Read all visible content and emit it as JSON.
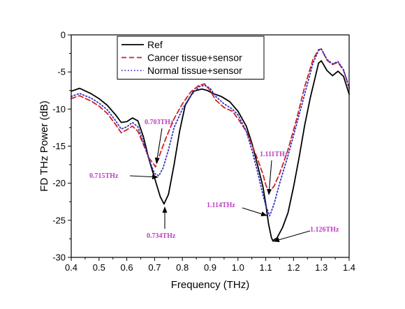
{
  "chart_data": {
    "type": "line",
    "xlabel": "Frequency (THz)",
    "ylabel": "FD THz Power (dB)",
    "xlim": [
      0.4,
      1.4
    ],
    "ylim": [
      -30,
      0
    ],
    "xticks": [
      0.4,
      0.5,
      0.6,
      0.7,
      0.8,
      0.9,
      1.0,
      1.1,
      1.2,
      1.3,
      1.4
    ],
    "xtick_labels": [
      "0.4",
      "0.5",
      "0.6",
      "0.7",
      "0.8",
      "0.9",
      "1.0",
      "1.1",
      "1.2",
      "1.3",
      "1.4"
    ],
    "yticks": [
      0,
      -5,
      -10,
      -15,
      -20,
      -25,
      -30
    ],
    "ytick_labels": [
      "0",
      "-5",
      "-10",
      "-15",
      "-20",
      "-25",
      "-30"
    ],
    "grid": false,
    "legend_position": "top-center",
    "series": [
      {
        "name": "Ref",
        "color": "#000000",
        "style": "solid",
        "x": [
          0.4,
          0.43,
          0.47,
          0.5,
          0.53,
          0.56,
          0.58,
          0.6,
          0.62,
          0.64,
          0.66,
          0.68,
          0.7,
          0.72,
          0.734,
          0.75,
          0.77,
          0.79,
          0.81,
          0.84,
          0.87,
          0.89,
          0.91,
          0.94,
          0.97,
          1.0,
          1.03,
          1.05,
          1.07,
          1.09,
          1.1,
          1.11,
          1.12,
          1.126,
          1.13,
          1.14,
          1.16,
          1.18,
          1.2,
          1.22,
          1.24,
          1.26,
          1.28,
          1.29,
          1.3,
          1.32,
          1.34,
          1.36,
          1.38,
          1.4
        ],
        "y": [
          -7.6,
          -7.2,
          -7.9,
          -8.6,
          -9.5,
          -10.8,
          -11.8,
          -11.7,
          -11.2,
          -11.6,
          -13.8,
          -16.8,
          -19.3,
          -21.8,
          -22.8,
          -21.5,
          -17.5,
          -13.0,
          -9.5,
          -7.6,
          -7.3,
          -7.5,
          -7.9,
          -8.3,
          -9.0,
          -10.3,
          -12.3,
          -14.6,
          -17.5,
          -20.5,
          -22.8,
          -25.5,
          -27.3,
          -27.8,
          -27.6,
          -27.4,
          -26.0,
          -24.0,
          -20.5,
          -16.5,
          -12.2,
          -8.5,
          -5.4,
          -3.8,
          -3.5,
          -4.8,
          -5.5,
          -4.9,
          -5.6,
          -8.0
        ]
      },
      {
        "name": "Cancer tissue+sensor",
        "color": "#d02020",
        "style": "dashed",
        "x": [
          0.4,
          0.43,
          0.47,
          0.5,
          0.53,
          0.56,
          0.58,
          0.6,
          0.62,
          0.64,
          0.66,
          0.68,
          0.7,
          0.703,
          0.72,
          0.74,
          0.77,
          0.8,
          0.83,
          0.86,
          0.88,
          0.9,
          0.92,
          0.95,
          0.98,
          1.0,
          1.03,
          1.05,
          1.07,
          1.09,
          1.1,
          1.111,
          1.13,
          1.15,
          1.18,
          1.21,
          1.24,
          1.27,
          1.29,
          1.3,
          1.32,
          1.34,
          1.36,
          1.38,
          1.4
        ],
        "y": [
          -8.6,
          -8.2,
          -8.9,
          -9.6,
          -10.6,
          -12.1,
          -13.2,
          -12.8,
          -12.3,
          -13.0,
          -14.8,
          -16.6,
          -17.6,
          -17.8,
          -16.0,
          -14.0,
          -11.3,
          -9.3,
          -7.7,
          -6.8,
          -6.6,
          -7.5,
          -8.8,
          -9.8,
          -10.3,
          -11.3,
          -13.0,
          -14.8,
          -16.7,
          -18.8,
          -20.2,
          -21.2,
          -20.4,
          -18.7,
          -15.5,
          -11.5,
          -7.0,
          -3.3,
          -2.0,
          -1.9,
          -3.4,
          -4.0,
          -3.7,
          -4.8,
          -7.0
        ]
      },
      {
        "name": "Normal tissue+sensor",
        "color": "#3030c0",
        "style": "dotted",
        "x": [
          0.4,
          0.43,
          0.47,
          0.5,
          0.53,
          0.56,
          0.58,
          0.6,
          0.62,
          0.64,
          0.66,
          0.68,
          0.7,
          0.715,
          0.73,
          0.75,
          0.77,
          0.8,
          0.83,
          0.86,
          0.88,
          0.9,
          0.92,
          0.95,
          0.98,
          1.0,
          1.03,
          1.05,
          1.07,
          1.09,
          1.1,
          1.114,
          1.13,
          1.15,
          1.18,
          1.21,
          1.24,
          1.27,
          1.29,
          1.3,
          1.32,
          1.34,
          1.36,
          1.38,
          1.4
        ],
        "y": [
          -8.3,
          -7.9,
          -8.5,
          -9.2,
          -10.1,
          -11.6,
          -12.7,
          -12.4,
          -11.8,
          -12.4,
          -14.5,
          -16.8,
          -18.7,
          -19.0,
          -18.0,
          -15.5,
          -12.5,
          -10.0,
          -8.2,
          -7.0,
          -6.8,
          -7.2,
          -8.3,
          -9.3,
          -10.0,
          -10.8,
          -13.0,
          -15.5,
          -18.4,
          -21.6,
          -23.0,
          -24.4,
          -22.8,
          -20.0,
          -16.3,
          -12.2,
          -8.0,
          -3.8,
          -2.1,
          -1.9,
          -3.3,
          -3.9,
          -3.6,
          -4.7,
          -7.2
        ]
      }
    ],
    "annotations": [
      {
        "text": "0.703THz",
        "color": "#c040c0",
        "x": 0.703,
        "y": -17.8
      },
      {
        "text": "0.715THz",
        "color": "#c040c0",
        "x": 0.715,
        "y": -19.0
      },
      {
        "text": "0.734THz",
        "color": "#c040c0",
        "x": 0.734,
        "y": -22.8
      },
      {
        "text": "1.111THz",
        "color": "#c040c0",
        "x": 1.111,
        "y": -21.2
      },
      {
        "text": "1.114THz",
        "color": "#c040c0",
        "x": 1.114,
        "y": -24.4
      },
      {
        "text": "1.126THz",
        "color": "#c040c0",
        "x": 1.126,
        "y": -27.8
      }
    ]
  }
}
